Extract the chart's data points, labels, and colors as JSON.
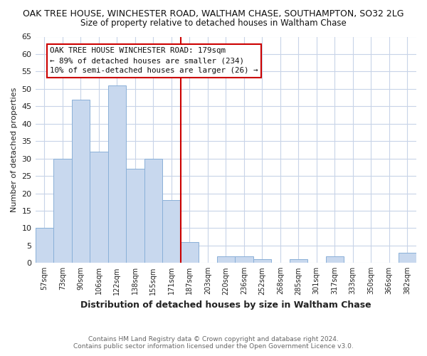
{
  "title": "OAK TREE HOUSE, WINCHESTER ROAD, WALTHAM CHASE, SOUTHAMPTON, SO32 2LG",
  "subtitle": "Size of property relative to detached houses in Waltham Chase",
  "xlabel": "Distribution of detached houses by size in Waltham Chase",
  "ylabel": "Number of detached properties",
  "bar_labels": [
    "57sqm",
    "73sqm",
    "90sqm",
    "106sqm",
    "122sqm",
    "138sqm",
    "155sqm",
    "171sqm",
    "187sqm",
    "203sqm",
    "220sqm",
    "236sqm",
    "252sqm",
    "268sqm",
    "285sqm",
    "301sqm",
    "317sqm",
    "333sqm",
    "350sqm",
    "366sqm",
    "382sqm"
  ],
  "bar_heights": [
    10,
    30,
    47,
    32,
    51,
    27,
    30,
    18,
    6,
    0,
    2,
    2,
    1,
    0,
    1,
    0,
    2,
    0,
    0,
    0,
    3
  ],
  "bar_color": "#c8d8ee",
  "bar_edge_color": "#8ab0d8",
  "grid_color": "#c8d4e8",
  "reference_line_x": 7.5,
  "reference_line_color": "#cc0000",
  "annotation_text": "OAK TREE HOUSE WINCHESTER ROAD: 179sqm\n← 89% of detached houses are smaller (234)\n10% of semi-detached houses are larger (26) →",
  "annotation_box_color": "#ffffff",
  "annotation_box_edge_color": "#cc0000",
  "ylim": [
    0,
    65
  ],
  "yticks": [
    0,
    5,
    10,
    15,
    20,
    25,
    30,
    35,
    40,
    45,
    50,
    55,
    60,
    65
  ],
  "footer_line1": "Contains HM Land Registry data © Crown copyright and database right 2024.",
  "footer_line2": "Contains public sector information licensed under the Open Government Licence v3.0.",
  "bg_color": "#ffffff",
  "plot_bg_color": "#ffffff"
}
